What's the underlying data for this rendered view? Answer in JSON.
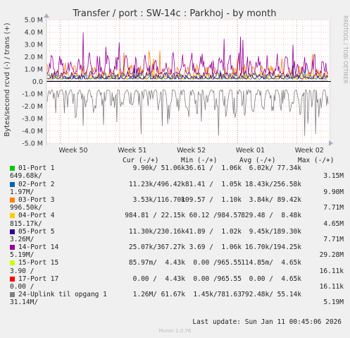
{
  "chart_data": {
    "type": "line",
    "title": "Transfer / port : SW-14c : Parkhoj - by month",
    "ylabel": "Bytes/second rcvd (-) / trans (+)",
    "ylim": [
      -5000000,
      5000000
    ],
    "y_ticks": [
      "5.0 M",
      "4.0 M",
      "3.0 M",
      "2.0 M",
      "1.0 M",
      "0.0",
      "-1.0 M",
      "-2.0 M",
      "-3.0 M",
      "-4.0 M",
      "-5.0 M"
    ],
    "x_ticks": [
      "Week 50",
      "Week 51",
      "Week 52",
      "Week 01",
      "Week 02"
    ],
    "side_label": "RRDTOOL / TOBI OETIKER",
    "legend_headers": [
      "Cur (-/+)",
      "Min (-/+)",
      "Avg (-/+)",
      "Max (-/+)"
    ],
    "series": [
      {
        "name": "01-Port 1",
        "color": "#00cc00",
        "cur": "9.90k/ 51.06k",
        "min": "36.61 /  1.06k",
        "avg": "6.02k/ 77.34k",
        "max_rcvd": "649.68k/",
        "max_trans": "3.15M",
        "peak_trans": 0.08,
        "peak_rcvd": 0.02
      },
      {
        "name": "02-Port 2",
        "color": "#0066b3",
        "cur": "11.23k/496.42k",
        "min": "81.41 /  1.05k",
        "avg": "18.43k/256.58k",
        "max_rcvd": "1.97M/",
        "max_trans": "9.90M",
        "peak_trans": 1.3,
        "peak_rcvd": 0.05
      },
      {
        "name": "03-Port 3",
        "color": "#ff8000",
        "cur": "3.53k/116.70k",
        "min": "109.57 /  1.10k",
        "avg": "3.84k/ 89.42k",
        "max_rcvd": "996.50k/",
        "max_trans": "7.71M",
        "peak_trans": 2.6,
        "peak_rcvd": 0.03
      },
      {
        "name": "04-Port 4",
        "color": "#ffcc00",
        "cur": "984.81 / 22.15k",
        "min": "60.12 /984.57",
        "avg": "829.48 /  8.48k",
        "max_rcvd": "815.17k/",
        "max_trans": "4.65M",
        "peak_trans": 1.2,
        "peak_rcvd": 0.02
      },
      {
        "name": "05-Port 5",
        "color": "#330099",
        "cur": "11.30k/230.16k",
        "min": "41.89 /  1.02k",
        "avg": "9.45k/189.30k",
        "max_rcvd": "3.26M/",
        "max_trans": "7.71M",
        "peak_trans": 1.4,
        "peak_rcvd": 0.04
      },
      {
        "name": "14-Port 14",
        "color": "#990099",
        "cur": "25.07k/367.27k",
        "min": "3.69 /  1.06k",
        "avg": "16.70k/194.25k",
        "max_rcvd": "5.19M/",
        "max_trans": "29.28M",
        "peak_trans": 4.0,
        "peak_rcvd": 0.06
      },
      {
        "name": "15-Port 15",
        "color": "#ccff00",
        "cur": "85.97m/  4.43k",
        "min": "0.00 /965.55",
        "avg": "114.85m/  4.65k",
        "max_rcvd": "3.90 /",
        "max_trans": "16.11k",
        "peak_trans": 0.0,
        "peak_rcvd": 0.0
      },
      {
        "name": "17-Port 17",
        "color": "#ff0000",
        "cur": "0.00 /  4.43k",
        "min": "0.00 /965.55",
        "avg": "0.00 /  4.65k",
        "max_rcvd": "0.00 /",
        "max_trans": "16.11k",
        "peak_trans": 0.0,
        "peak_rcvd": 0.0
      },
      {
        "name": "24-Uplink til opgang 1",
        "color": "#808080",
        "cur": "1.26M/ 61.67k",
        "min": "1.45k/781.63",
        "avg": "792.48k/ 55.14k",
        "max_rcvd": "31.14M/",
        "max_trans": "5.19M",
        "peak_trans": 0.05,
        "peak_rcvd": -4.5
      }
    ]
  },
  "footer": {
    "last_update": "Last update: Sun Jan 11 00:45:06 2026",
    "version": "Munin 2.0.76"
  }
}
